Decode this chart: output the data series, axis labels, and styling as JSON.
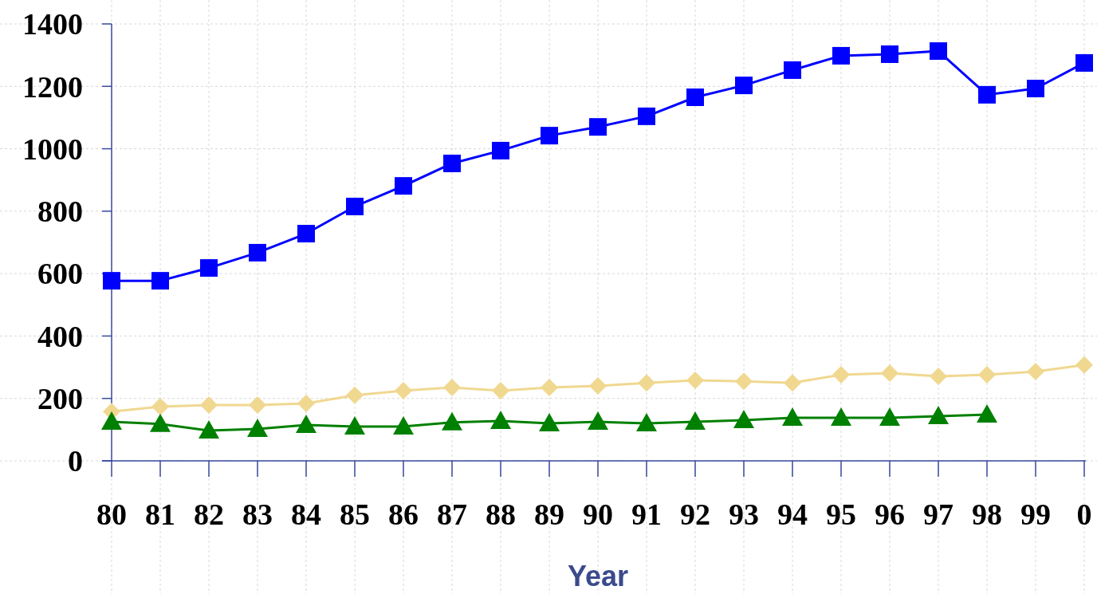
{
  "chart_data": {
    "type": "line",
    "xlabel": "Year",
    "categories": [
      "80",
      "81",
      "82",
      "83",
      "84",
      "85",
      "86",
      "87",
      "88",
      "89",
      "90",
      "91",
      "92",
      "93",
      "94",
      "95",
      "96",
      "97",
      "98",
      "99",
      "0"
    ],
    "ylim": [
      0,
      1400
    ],
    "yticks": [
      0,
      200,
      400,
      600,
      800,
      1000,
      1200,
      1400
    ],
    "grid": true,
    "series": [
      {
        "color": "#0000ff",
        "marker": "square",
        "values": [
          577,
          577,
          618,
          667,
          728,
          815,
          881,
          953,
          994,
          1042,
          1070,
          1104,
          1165,
          1203,
          1252,
          1298,
          1303,
          1313,
          1173,
          1193,
          1275
        ]
      },
      {
        "color": "#f0d890",
        "marker": "diamond",
        "values": [
          158,
          174,
          179,
          179,
          184,
          210,
          225,
          235,
          225,
          235,
          240,
          250,
          258,
          255,
          250,
          276,
          281,
          271,
          276,
          286,
          307
        ]
      },
      {
        "color": "#008000",
        "marker": "triangle",
        "values": [
          125,
          118,
          97,
          102,
          115,
          110,
          110,
          123,
          128,
          120,
          125,
          120,
          125,
          130,
          138,
          138,
          138,
          143,
          148,
          null,
          null
        ]
      }
    ]
  }
}
